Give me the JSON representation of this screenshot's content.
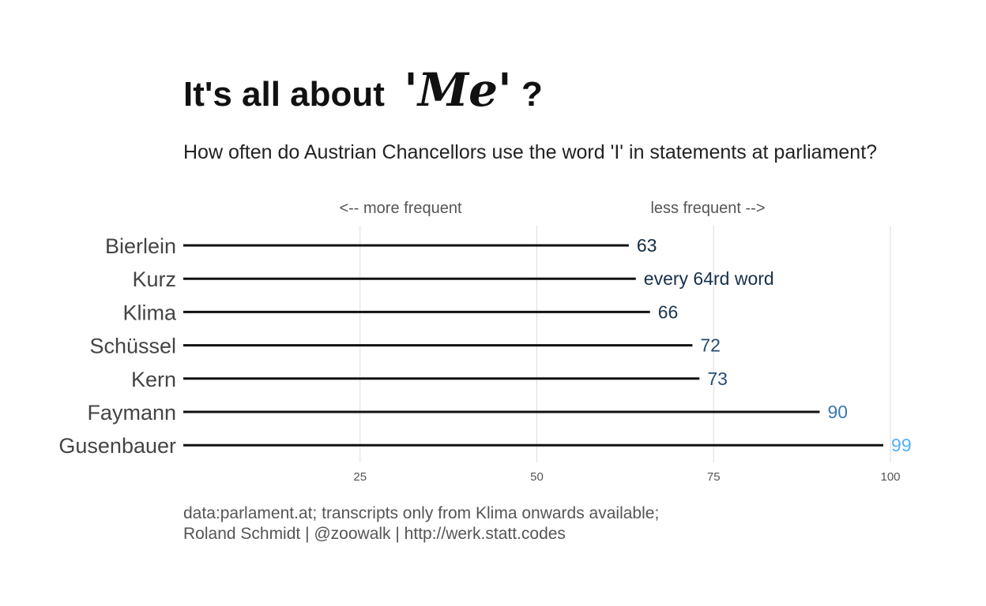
{
  "chart_data": {
    "type": "bar",
    "orientation": "horizontal",
    "title": "It's all about",
    "title_accent": "'Me'",
    "title_suffix": "?",
    "subtitle": "How often do Austrian Chancellors use the word 'I' in statements at parliament?",
    "direction_labels": {
      "left": "<-- more frequent",
      "right": "less frequent -->"
    },
    "categories": [
      "Bierlein",
      "Kurz",
      "Klima",
      "Schüssel",
      "Kern",
      "Faymann",
      "Gusenbauer"
    ],
    "values": [
      63,
      64,
      66,
      72,
      73,
      90,
      99
    ],
    "data_labels": [
      "63",
      "every 64rd word",
      "66",
      "72",
      "73",
      "90",
      "99"
    ],
    "label_colors": [
      "#132b43",
      "#16304a",
      "#193652",
      "#244b6f",
      "#264f74",
      "#3a78b2",
      "#56b1f7"
    ],
    "xlim": [
      0,
      100
    ],
    "xticks": [
      25,
      50,
      75,
      100
    ],
    "xtick_labels": [
      "25",
      "50",
      "75",
      "100"
    ],
    "grid": "vertical major",
    "legend": "none",
    "caption_lines": [
      "data:parlament.at; transcripts only from Klima onwards available;",
      "Roland Schmidt | @zoowalk | http://werk.statt.codes"
    ]
  }
}
